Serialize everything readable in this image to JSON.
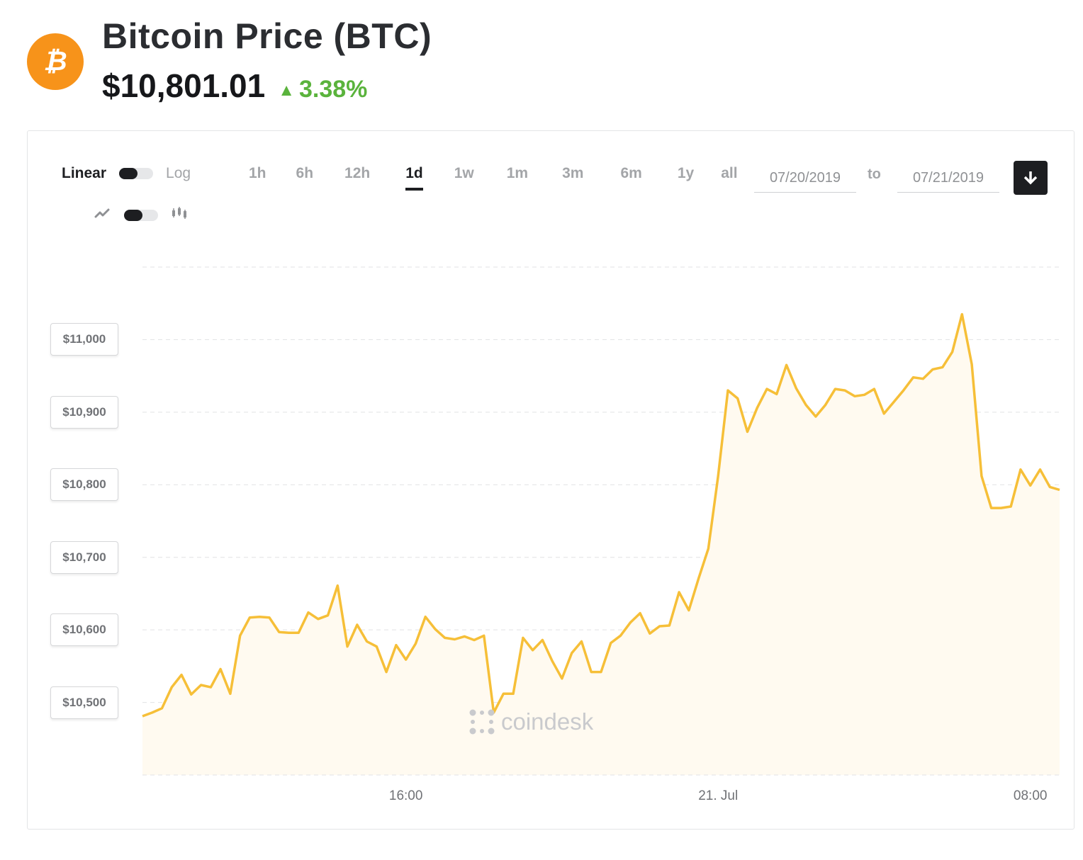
{
  "header": {
    "title": "Bitcoin Price (BTC)",
    "price": "$10,801.01",
    "change": "3.38%",
    "change_icon": "triangle-up-icon",
    "logo_icon": "bitcoin-icon"
  },
  "controls": {
    "scale_left": "Linear",
    "scale_right": "Log",
    "type_left_icon": "line-chart-icon",
    "type_right_icon": "candlestick-icon",
    "ranges": [
      "1h",
      "6h",
      "12h",
      "1d",
      "1w",
      "1m",
      "3m",
      "6m",
      "1y",
      "all"
    ],
    "active_range": "1d",
    "date_from": "07/20/2019",
    "date_to_label": "to",
    "date_to": "07/21/2019",
    "download_icon": "download-arrow-icon"
  },
  "watermark": "coindesk",
  "colors": {
    "line": "#f6bf38",
    "area": "#fffaf0",
    "accent_up": "#5ab33c",
    "logo": "#f7931a"
  },
  "chart_data": {
    "type": "area",
    "y_tick_labels": [
      "$11,000",
      "$10,900",
      "$10,800",
      "$10,700",
      "$10,600",
      "$10,500"
    ],
    "y_ticks": [
      11000,
      10900,
      10800,
      10700,
      10600,
      10500
    ],
    "ylim": [
      10400,
      11100
    ],
    "x_tick_labels": [
      "16:00",
      "21. Jul",
      "08:00"
    ],
    "x_tick_hours": [
      16,
      24,
      32
    ],
    "xlim_hours": [
      9.25,
      32.75
    ],
    "grid": true,
    "series": [
      {
        "values": [
          10481,
          10486,
          10492,
          10521,
          10538,
          10511,
          10524,
          10521,
          10546,
          10512,
          10592,
          10617,
          10618,
          10617,
          10597,
          10596,
          10596,
          10624,
          10615,
          10620,
          10661,
          10577,
          10607,
          10584,
          10577,
          10542,
          10579,
          10559,
          10581,
          10618,
          10601,
          10589,
          10587,
          10591,
          10586,
          10592,
          10486,
          10512,
          10512,
          10589,
          10572,
          10586,
          10557,
          10533,
          10568,
          10584,
          10542,
          10542,
          10582,
          10592,
          10610,
          10623,
          10595,
          10605,
          10606,
          10652,
          10627,
          10671,
          10712,
          10812,
          10930,
          10919,
          10873,
          10906,
          10932,
          10925,
          10965,
          10933,
          10910,
          10894,
          10910,
          10932,
          10930,
          10922,
          10924,
          10932,
          10898,
          10914,
          10930,
          10948,
          10946,
          10959,
          10962,
          10983,
          11035,
          10966,
          10812,
          10768,
          10768,
          10770,
          10821,
          10799,
          10821,
          10797,
          10793
        ]
      }
    ]
  }
}
